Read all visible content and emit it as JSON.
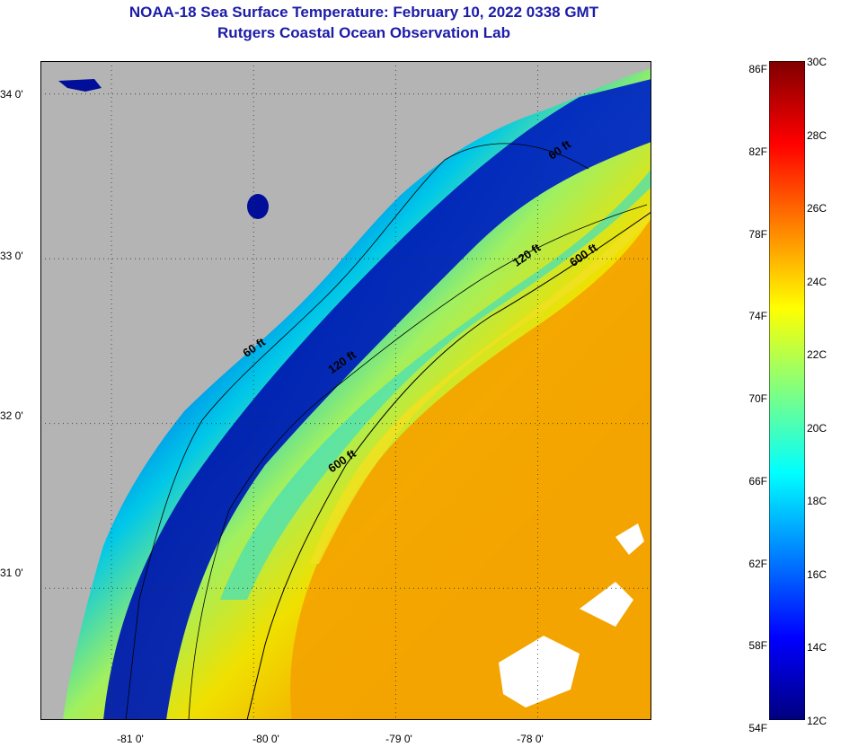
{
  "title": {
    "line1": "NOAA-18 Sea Surface Temperature:  February 10, 2022 0338 GMT",
    "line2": "Rutgers Coastal Ocean Observation Lab"
  },
  "map": {
    "lat_labels": [
      "34 0'",
      "33 0'",
      "32 0'",
      "31 0'"
    ],
    "lon_labels": [
      "-81 0'",
      "-80 0'",
      "-79 0'",
      "-78 0'"
    ],
    "lat_range": [
      30.2,
      34.2
    ],
    "lon_range": [
      -81.5,
      -77.2
    ],
    "isobath_labels": [
      {
        "text": "60 ft",
        "lon": -77.9,
        "lat": 33.6
      },
      {
        "text": "120 ft",
        "lon": -78.15,
        "lat": 32.95
      },
      {
        "text": "600 ft",
        "lon": -77.75,
        "lat": 32.95
      },
      {
        "text": "60 ft",
        "lon": -80.05,
        "lat": 32.4
      },
      {
        "text": "120 ft",
        "lon": -79.45,
        "lat": 32.3
      },
      {
        "text": "600 ft",
        "lon": -79.45,
        "lat": 31.7
      }
    ]
  },
  "colorbar": {
    "fahrenheit_labels": [
      "86F",
      "82F",
      "78F",
      "74F",
      "70F",
      "66F",
      "62F",
      "58F",
      "54F"
    ],
    "celsius_labels": [
      "30C",
      "28C",
      "26C",
      "24C",
      "22C",
      "20C",
      "18C",
      "16C",
      "14C",
      "12C"
    ],
    "colors_top_to_bottom": [
      "#7f0000",
      "#ff0000",
      "#ff8000",
      "#ffff00",
      "#80ff80",
      "#00ffff",
      "#0080ff",
      "#0000ff",
      "#00007f"
    ]
  },
  "colors": {
    "land": "#b4b4b4",
    "cold_water": "#000e9a",
    "warm_water": "#f5a300",
    "title": "#1b1ba8"
  }
}
